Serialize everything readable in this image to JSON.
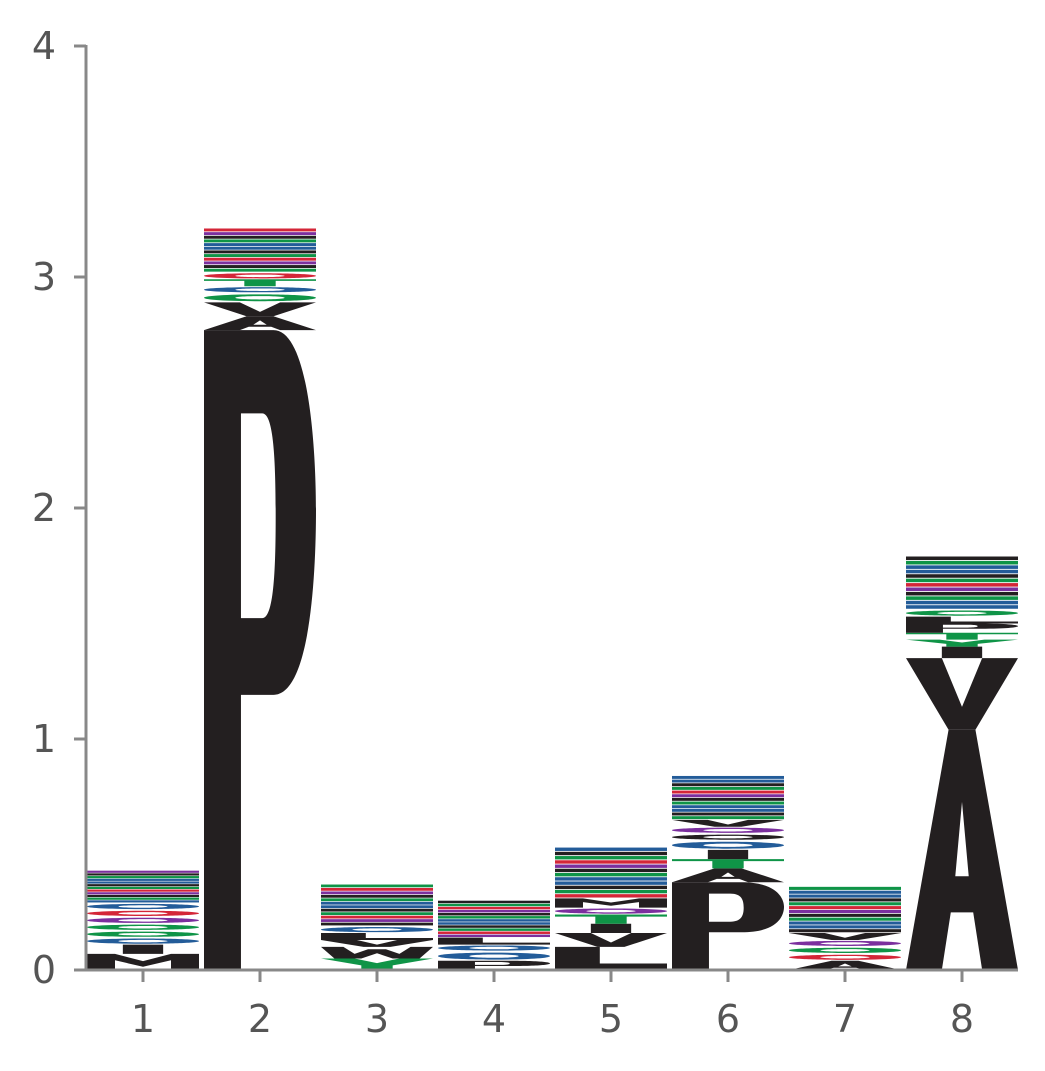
{
  "chart_data": {
    "type": "sequence-logo",
    "title": "",
    "xlabel": "",
    "ylabel": "",
    "ylim": [
      0,
      4
    ],
    "yticks": [
      "0",
      "1",
      "2",
      "3",
      "4"
    ],
    "positions": [
      "1",
      "2",
      "3",
      "4",
      "5",
      "6",
      "7",
      "8"
    ],
    "colors": {
      "hydrophobic": "#231f20",
      "polar": "#0f9447",
      "basic": "#235c99",
      "acidic": "#d42638",
      "neutral": "#7b2f9e"
    },
    "stacks": [
      {
        "position": "1",
        "total": 0.43,
        "letters": [
          {
            "letter": "M",
            "value": 0.07
          },
          {
            "letter": "I",
            "value": 0.04
          },
          {
            "letter": "R",
            "value": 0.03
          },
          {
            "letter": "S",
            "value": 0.03
          },
          {
            "letter": "G",
            "value": 0.03
          },
          {
            "letter": "Q",
            "value": 0.03
          },
          {
            "letter": "D",
            "value": 0.03
          },
          {
            "letter": "K",
            "value": 0.03
          },
          {
            "letter": "other",
            "value": 0.14
          }
        ]
      },
      {
        "position": "2",
        "total": 3.21,
        "letters": [
          {
            "letter": "P",
            "value": 2.77
          },
          {
            "letter": "A",
            "value": 0.06
          },
          {
            "letter": "V",
            "value": 0.06
          },
          {
            "letter": "C",
            "value": 0.04
          },
          {
            "letter": "R",
            "value": 0.03
          },
          {
            "letter": "T",
            "value": 0.03
          },
          {
            "letter": "E",
            "value": 0.03
          },
          {
            "letter": "other",
            "value": 0.19
          }
        ]
      },
      {
        "position": "3",
        "total": 0.37,
        "letters": [
          {
            "letter": "Y",
            "value": 0.05
          },
          {
            "letter": "W",
            "value": 0.05
          },
          {
            "letter": "V",
            "value": 0.03
          },
          {
            "letter": "L",
            "value": 0.03
          },
          {
            "letter": "K",
            "value": 0.03
          },
          {
            "letter": "other",
            "value": 0.18
          }
        ]
      },
      {
        "position": "4",
        "total": 0.3,
        "letters": [
          {
            "letter": "P",
            "value": 0.04
          },
          {
            "letter": "R",
            "value": 0.04
          },
          {
            "letter": "K",
            "value": 0.03
          },
          {
            "letter": "L",
            "value": 0.03
          },
          {
            "letter": "other",
            "value": 0.16
          }
        ]
      },
      {
        "position": "5",
        "total": 0.53,
        "letters": [
          {
            "letter": "L",
            "value": 0.1
          },
          {
            "letter": "V",
            "value": 0.06
          },
          {
            "letter": "I",
            "value": 0.04
          },
          {
            "letter": "T",
            "value": 0.04
          },
          {
            "letter": "Q",
            "value": 0.03
          },
          {
            "letter": "M",
            "value": 0.04
          },
          {
            "letter": "other",
            "value": 0.22
          }
        ]
      },
      {
        "position": "6",
        "total": 0.84,
        "letters": [
          {
            "letter": "P",
            "value": 0.38
          },
          {
            "letter": "A",
            "value": 0.06
          },
          {
            "letter": "T",
            "value": 0.04
          },
          {
            "letter": "I",
            "value": 0.04
          },
          {
            "letter": "R",
            "value": 0.04
          },
          {
            "letter": "F",
            "value": 0.03
          },
          {
            "letter": "Q",
            "value": 0.03
          },
          {
            "letter": "V",
            "value": 0.03
          },
          {
            "letter": "other",
            "value": 0.19
          }
        ]
      },
      {
        "position": "7",
        "total": 0.36,
        "letters": [
          {
            "letter": "A",
            "value": 0.04
          },
          {
            "letter": "E",
            "value": 0.03
          },
          {
            "letter": "S",
            "value": 0.03
          },
          {
            "letter": "Q",
            "value": 0.03
          },
          {
            "letter": "V",
            "value": 0.03
          },
          {
            "letter": "other",
            "value": 0.2
          }
        ]
      },
      {
        "position": "8",
        "total": 1.79,
        "letters": [
          {
            "letter": "A",
            "value": 1.04
          },
          {
            "letter": "V",
            "value": 0.31
          },
          {
            "letter": "I",
            "value": 0.05
          },
          {
            "letter": "Y",
            "value": 0.03
          },
          {
            "letter": "T",
            "value": 0.03
          },
          {
            "letter": "P",
            "value": 0.04
          },
          {
            "letter": "L",
            "value": 0.03
          },
          {
            "letter": "G",
            "value": 0.03
          },
          {
            "letter": "other",
            "value": 0.23
          }
        ]
      }
    ]
  }
}
